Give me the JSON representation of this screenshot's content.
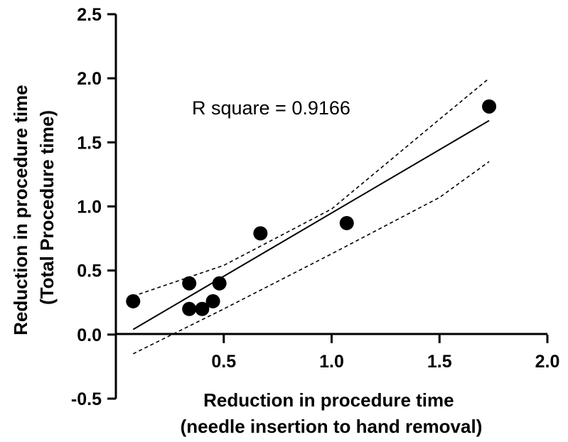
{
  "chart_data": {
    "type": "scatter",
    "xlabel": [
      "Reduction in procedure time",
      "(needle insertion to hand removal)"
    ],
    "ylabel": [
      "Reduction in procedure time",
      "(Total Procedure time)"
    ],
    "annotation": "R square = 0.9166",
    "xlim": [
      0,
      2.0
    ],
    "ylim": [
      -0.5,
      2.5
    ],
    "x_ticks": [
      "0.5",
      "1.0",
      "1.5",
      "2.0"
    ],
    "y_ticks": [
      "-0.5",
      "0.0",
      "0.5",
      "1.0",
      "1.5",
      "2.0",
      "2.5"
    ],
    "grid": false,
    "points": [
      {
        "x": 0.08,
        "y": 0.26
      },
      {
        "x": 0.34,
        "y": 0.4
      },
      {
        "x": 0.34,
        "y": 0.2
      },
      {
        "x": 0.4,
        "y": 0.2
      },
      {
        "x": 0.45,
        "y": 0.26
      },
      {
        "x": 0.48,
        "y": 0.4
      },
      {
        "x": 0.67,
        "y": 0.79
      },
      {
        "x": 1.07,
        "y": 0.87
      },
      {
        "x": 1.73,
        "y": 1.78
      }
    ],
    "regression_line": {
      "x": [
        0.08,
        1.73
      ],
      "y": [
        0.04,
        1.67
      ]
    },
    "confidence_upper": {
      "x": [
        0.08,
        0.5,
        1.0,
        1.5,
        1.73
      ],
      "y": [
        0.3,
        0.54,
        0.98,
        1.68,
        2.0
      ]
    },
    "confidence_lower": {
      "x": [
        0.08,
        0.5,
        1.0,
        1.5,
        1.73
      ],
      "y": [
        -0.15,
        0.2,
        0.63,
        1.07,
        1.35
      ]
    }
  }
}
